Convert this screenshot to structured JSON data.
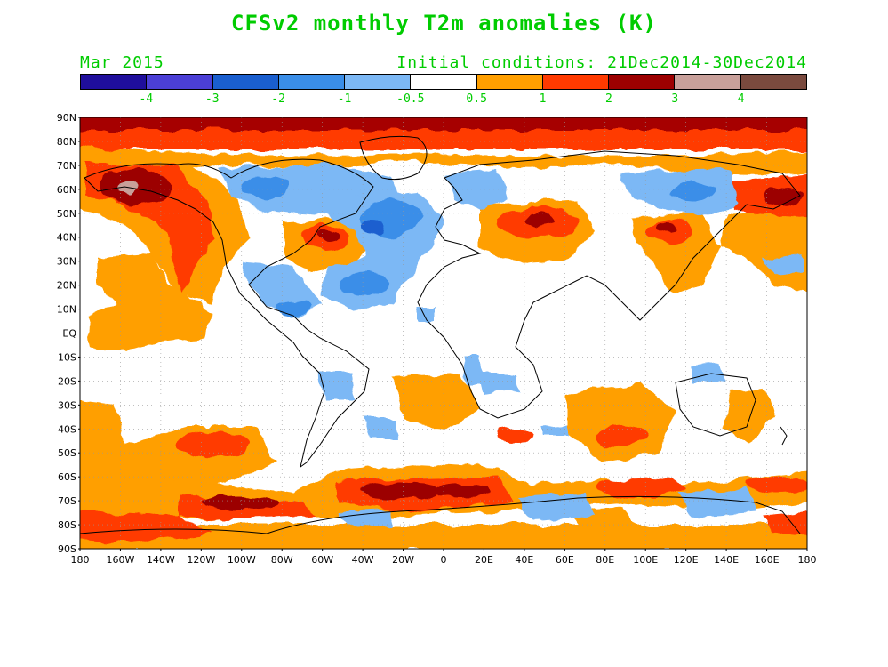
{
  "title": "CFSv2 monthly T2m anomalies (K)",
  "subtitle_left": "Mar 2015",
  "subtitle_right": "Initial conditions: 21Dec2014-30Dec2014",
  "text_color": "#00cc00",
  "colorbar": {
    "colors": [
      "#1f0e9c",
      "#4b3fd6",
      "#1a5fcf",
      "#3a8ee8",
      "#7cb8f5",
      "#ffffff",
      "#ff9f00",
      "#ff3a00",
      "#9c0000",
      "#c8a09a",
      "#7a4a3e"
    ],
    "labels": [
      "-4",
      "-3",
      "-2",
      "-1",
      "-0.5",
      "0.5",
      "1",
      "2",
      "3",
      "4"
    ]
  },
  "lat_labels": [
    "90N",
    "80N",
    "70N",
    "60N",
    "50N",
    "40N",
    "30N",
    "20N",
    "10N",
    "EQ",
    "10S",
    "20S",
    "30S",
    "40S",
    "50S",
    "60S",
    "70S",
    "80S",
    "90S"
  ],
  "lon_labels": [
    "180",
    "160W",
    "140W",
    "120W",
    "100W",
    "80W",
    "60W",
    "40W",
    "20W",
    "0",
    "20E",
    "40E",
    "60E",
    "80E",
    "100E",
    "120E",
    "140E",
    "160E",
    "180"
  ]
}
